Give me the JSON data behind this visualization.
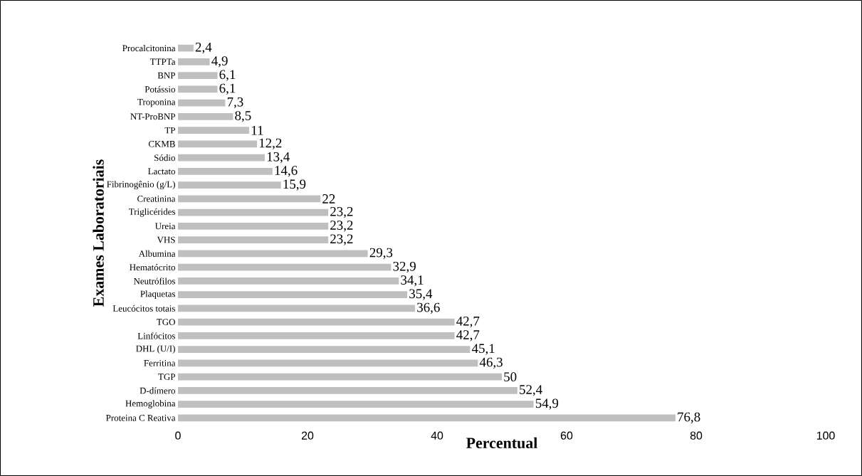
{
  "chart_data": {
    "type": "bar",
    "orientation": "horizontal",
    "xlabel": "Percentual",
    "ylabel": "Exames Laboratoriais",
    "categories": [
      "Procalcitonina",
      "TTPTa",
      "BNP",
      "Potássio",
      "Troponina",
      "NT-ProBNP",
      "TP",
      "CKMB",
      "Sódio",
      "Lactato",
      "Fibrinogênio (g/L)",
      "Creatinina",
      "Triglicérides",
      "Ureia",
      "VHS",
      "Albumina",
      "Hematócrito",
      "Neutrófilos",
      "Plaquetas",
      "Leucócitos totais",
      "TGO",
      "Linfócitos",
      "DHL (U/I)",
      "Ferritina",
      "TGP",
      "D-dímero",
      "Hemoglobina",
      "Proteina C Reativa"
    ],
    "values": [
      2.4,
      4.9,
      6.1,
      6.1,
      7.3,
      8.5,
      11,
      12.2,
      13.4,
      14.6,
      15.9,
      22,
      23.2,
      23.2,
      23.2,
      29.3,
      32.9,
      34.1,
      35.4,
      36.6,
      42.7,
      42.7,
      45.1,
      46.3,
      50,
      52.4,
      54.9,
      76.8
    ],
    "value_labels": [
      "2,4",
      "4,9",
      "6,1",
      "6,1",
      "7,3",
      "8,5",
      "11",
      "12,2",
      "13,4",
      "14,6",
      "15,9",
      "22",
      "23,2",
      "23,2",
      "23,2",
      "29,3",
      "32,9",
      "34,1",
      "35,4",
      "36,6",
      "42,7",
      "42,7",
      "45,1",
      "46,3",
      "50",
      "52,4",
      "54,9",
      "76,8"
    ],
    "color": "#bfbfbf",
    "xlim": [
      0,
      100
    ],
    "xticks": [
      0,
      20,
      40,
      60,
      80,
      100
    ]
  }
}
